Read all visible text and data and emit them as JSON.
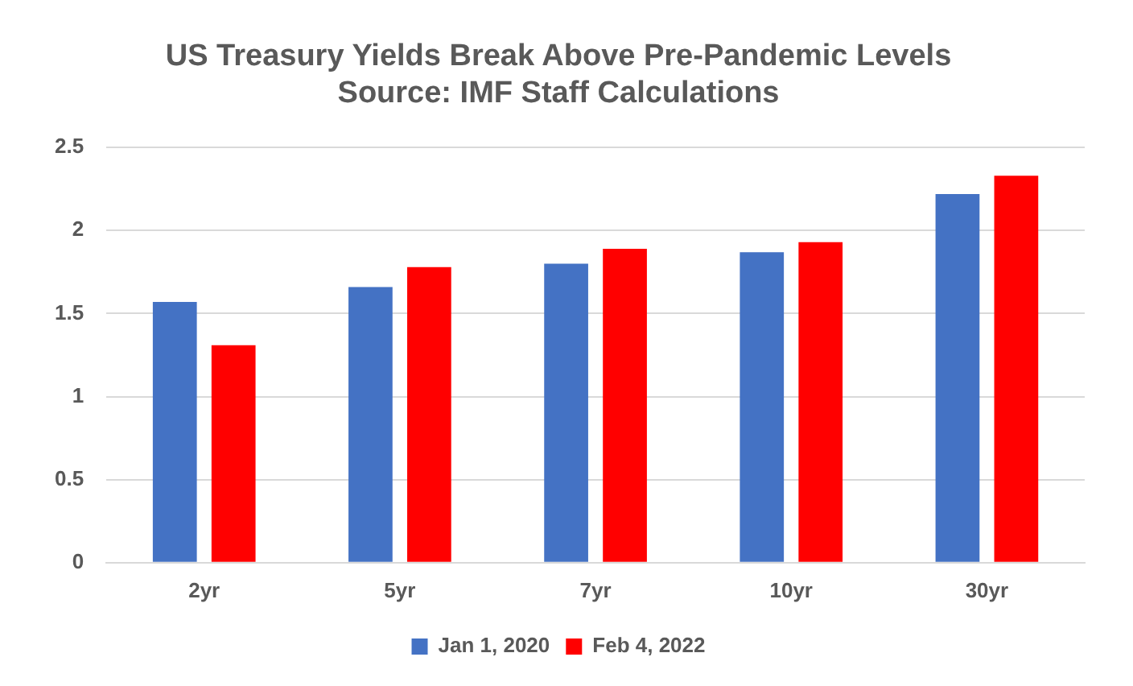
{
  "chart_data": {
    "type": "bar",
    "title": [
      "US Treasury Yields Break Above Pre-Pandemic Levels",
      "Source: IMF Staff Calculations"
    ],
    "categories": [
      "2yr",
      "5yr",
      "7yr",
      "10yr",
      "30yr"
    ],
    "series": [
      {
        "name": "Jan 1, 2020",
        "color": "#4472c4",
        "values": [
          1.57,
          1.66,
          1.8,
          1.87,
          2.22
        ]
      },
      {
        "name": "Feb 4, 2022",
        "color": "#ff0000",
        "values": [
          1.31,
          1.78,
          1.89,
          1.93,
          2.33
        ]
      }
    ],
    "ylim": [
      0,
      2.5
    ],
    "yticks": [
      0,
      0.5,
      1,
      1.5,
      2,
      2.5
    ],
    "grid": "y",
    "legend": "bottom"
  }
}
